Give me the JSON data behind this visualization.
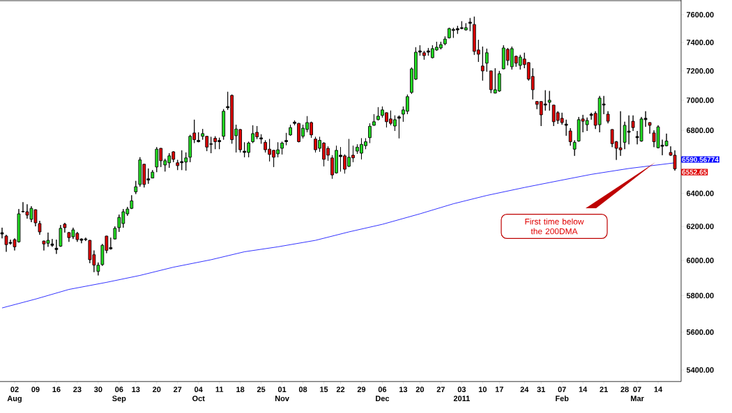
{
  "chart_data": {
    "type": "candlestick",
    "categories": [
      null,
      null,
      null,
      "02 Aug",
      null,
      null,
      null,
      null,
      "09",
      null,
      null,
      null,
      null,
      "16",
      null,
      null,
      null,
      null,
      "23",
      null,
      null,
      null,
      null,
      "30",
      null,
      null,
      null,
      null,
      "06 Sep",
      null,
      null,
      null,
      "13",
      null,
      null,
      null,
      null,
      "20",
      null,
      null,
      null,
      null,
      "27",
      null,
      null,
      null,
      null,
      "04 Oct",
      null,
      null,
      null,
      null,
      "11",
      null,
      null,
      null,
      null,
      "18",
      null,
      null,
      null,
      null,
      "25",
      null,
      null,
      null,
      null,
      "01 Nov",
      null,
      null,
      null,
      null,
      "08",
      null,
      null,
      null,
      null,
      "15",
      null,
      null,
      null,
      "22",
      null,
      null,
      null,
      null,
      "29",
      null,
      null,
      null,
      null,
      "06 Dec",
      null,
      null,
      null,
      null,
      "13",
      null,
      null,
      null,
      "20",
      null,
      null,
      null,
      null,
      "27",
      null,
      null,
      null,
      null,
      "03 2011",
      null,
      null,
      null,
      null,
      "10",
      null,
      null,
      null,
      "17",
      null,
      null,
      null,
      null,
      null,
      "24",
      null,
      null,
      null,
      "31",
      null,
      null,
      null,
      null,
      "07 Feb",
      null,
      null,
      null,
      null,
      "14",
      null,
      null,
      null,
      null,
      "21",
      null,
      null,
      null,
      null,
      "28",
      null,
      null,
      "07 Mar",
      null,
      null,
      null,
      null,
      "14",
      null,
      null,
      null,
      null
    ],
    "ohlc": [
      [
        6154,
        6192,
        6129,
        6162
      ],
      [
        6142,
        6150,
        6050,
        6092
      ],
      [
        6105,
        6121,
        6092,
        6100
      ],
      [
        6121,
        6129,
        6058,
        6079
      ],
      [
        6108,
        6304,
        6104,
        6275
      ],
      [
        6288,
        6346,
        6283,
        6290
      ],
      [
        6288,
        6333,
        6246,
        6267
      ],
      [
        6242,
        6321,
        6225,
        6308
      ],
      [
        6300,
        6302,
        6200,
        6221
      ],
      [
        6217,
        6233,
        6150,
        6167
      ],
      [
        6113,
        6115,
        6058,
        6096
      ],
      [
        6100,
        6163,
        6079,
        6117
      ],
      [
        6088,
        6125,
        6079,
        6096
      ],
      [
        6071,
        6121,
        6038,
        6063
      ],
      [
        6083,
        6208,
        6079,
        6188
      ],
      [
        6213,
        6221,
        6163,
        6192
      ],
      [
        6163,
        6167,
        6108,
        6133
      ],
      [
        6138,
        6192,
        6125,
        6179
      ],
      [
        6158,
        6167,
        6108,
        6121
      ],
      [
        6117,
        6129,
        6100,
        6125
      ],
      [
        6125,
        6133,
        6113,
        6121
      ],
      [
        6117,
        6119,
        5984,
        6004
      ],
      [
        6033,
        6058,
        5933,
        5973
      ],
      [
        5937,
        5988,
        5914,
        5973
      ],
      [
        5976,
        6096,
        5969,
        6088
      ],
      [
        6142,
        6144,
        6042,
        6058
      ],
      [
        6067,
        6133,
        6063,
        6075
      ],
      [
        6125,
        6200,
        6123,
        6188
      ],
      [
        6192,
        6271,
        6167,
        6254
      ],
      [
        6217,
        6304,
        6192,
        6288
      ],
      [
        6275,
        6317,
        6263,
        6304
      ],
      [
        6308,
        6388,
        6304,
        6354
      ],
      [
        6409,
        6477,
        6396,
        6441
      ],
      [
        6455,
        6626,
        6441,
        6609
      ],
      [
        6582,
        6584,
        6436,
        6455
      ],
      [
        6482,
        6555,
        6459,
        6490
      ],
      [
        6495,
        6545,
        6493,
        6532
      ],
      [
        6564,
        6691,
        6532,
        6678
      ],
      [
        6683,
        6685,
        6564,
        6604
      ],
      [
        6577,
        6617,
        6536,
        6604
      ],
      [
        6591,
        6652,
        6559,
        6635
      ],
      [
        6661,
        6665,
        6595,
        6613
      ],
      [
        6591,
        6609,
        6545,
        6573
      ],
      [
        6591,
        6670,
        6545,
        6599
      ],
      [
        6596,
        6657,
        6541,
        6622
      ],
      [
        6626,
        6770,
        6595,
        6761
      ],
      [
        6783,
        6870,
        6717,
        6739
      ],
      [
        6726,
        6787,
        6722,
        6735
      ],
      [
        6761,
        6809,
        6739,
        6778
      ],
      [
        6761,
        6763,
        6665,
        6691
      ],
      [
        6713,
        6757,
        6652,
        6709
      ],
      [
        6748,
        6761,
        6678,
        6726
      ],
      [
        6726,
        6752,
        6678,
        6734
      ],
      [
        6761,
        6940,
        6739,
        6926
      ],
      [
        6949,
        7057,
        6935,
        6957
      ],
      [
        7033,
        7038,
        6713,
        6739
      ],
      [
        6765,
        6837,
        6657,
        6809
      ],
      [
        6805,
        6809,
        6657,
        6674
      ],
      [
        6657,
        6722,
        6626,
        6665
      ],
      [
        6657,
        6726,
        6626,
        6717
      ],
      [
        6726,
        6833,
        6717,
        6778
      ],
      [
        6787,
        6828,
        6743,
        6757
      ],
      [
        6743,
        6774,
        6713,
        6751
      ],
      [
        6722,
        6735,
        6657,
        6674
      ],
      [
        6678,
        6743,
        6600,
        6644
      ],
      [
        6670,
        6672,
        6564,
        6626
      ],
      [
        6648,
        6722,
        6626,
        6674
      ],
      [
        6683,
        6726,
        6644,
        6717
      ],
      [
        6726,
        6783,
        6704,
        6734
      ],
      [
        6770,
        6837,
        6765,
        6818
      ],
      [
        6846,
        6865,
        6833,
        6854
      ],
      [
        6846,
        6848,
        6722,
        6726
      ],
      [
        6761,
        6837,
        6748,
        6814
      ],
      [
        6805,
        6893,
        6787,
        6851
      ],
      [
        6851,
        6856,
        6752,
        6770
      ],
      [
        6743,
        6757,
        6657,
        6674
      ],
      [
        6683,
        6757,
        6661,
        6735
      ],
      [
        6717,
        6722,
        6569,
        6613
      ],
      [
        6683,
        6696,
        6604,
        6639
      ],
      [
        6622,
        6639,
        6491,
        6514
      ],
      [
        6527,
        6700,
        6523,
        6670
      ],
      [
        6639,
        6691,
        6536,
        6630
      ],
      [
        6635,
        6644,
        6523,
        6550
      ],
      [
        6568,
        6743,
        6564,
        6626
      ],
      [
        6639,
        6700,
        6595,
        6622
      ],
      [
        6665,
        6709,
        6648,
        6691
      ],
      [
        6652,
        6748,
        6613,
        6709
      ],
      [
        6700,
        6748,
        6678,
        6726
      ],
      [
        6752,
        6846,
        6717,
        6827
      ],
      [
        6833,
        6907,
        6831,
        6856
      ],
      [
        6870,
        6953,
        6865,
        6893
      ],
      [
        6898,
        6958,
        6884,
        6935
      ],
      [
        6916,
        6918,
        6819,
        6856
      ],
      [
        6875,
        6930,
        6833,
        6846
      ],
      [
        6828,
        6898,
        6796,
        6870
      ],
      [
        6879,
        6898,
        6748,
        6889
      ],
      [
        6907,
        6958,
        6856,
        6935
      ],
      [
        6926,
        7038,
        6907,
        7024
      ],
      [
        7052,
        7224,
        7043,
        7214
      ],
      [
        7143,
        7366,
        7138,
        7331
      ],
      [
        7341,
        7380,
        7307,
        7331
      ],
      [
        7327,
        7341,
        7278,
        7307
      ],
      [
        7331,
        7361,
        7307,
        7341
      ],
      [
        7292,
        7380,
        7288,
        7356
      ],
      [
        7346,
        7405,
        7341,
        7366
      ],
      [
        7361,
        7405,
        7351,
        7385
      ],
      [
        7390,
        7443,
        7380,
        7424
      ],
      [
        7433,
        7505,
        7429,
        7500
      ],
      [
        7486,
        7505,
        7433,
        7494
      ],
      [
        7500,
        7519,
        7462,
        7490
      ],
      [
        7500,
        7552,
        7495,
        7505
      ],
      [
        7490,
        7538,
        7486,
        7505
      ],
      [
        7538,
        7576,
        7481,
        7546
      ],
      [
        7529,
        7586,
        7312,
        7336
      ],
      [
        7346,
        7419,
        7263,
        7317
      ],
      [
        7234,
        7371,
        7133,
        7200
      ],
      [
        7254,
        7356,
        7195,
        7327
      ],
      [
        7200,
        7202,
        7048,
        7071
      ],
      [
        7048,
        7219,
        7046,
        7071
      ],
      [
        7062,
        7200,
        7057,
        7181
      ],
      [
        7214,
        7380,
        7212,
        7361
      ],
      [
        7351,
        7361,
        7239,
        7273
      ],
      [
        7229,
        7371,
        7210,
        7356
      ],
      [
        7302,
        7307,
        7229,
        7254
      ],
      [
        7239,
        7312,
        7210,
        7297
      ],
      [
        7283,
        7327,
        7219,
        7244
      ],
      [
        7258,
        7260,
        7133,
        7143
      ],
      [
        7162,
        7219,
        7005,
        7071
      ],
      [
        6991,
        6995,
        6940,
        6972
      ],
      [
        6991,
        6993,
        6828,
        6902
      ],
      [
        6967,
        7067,
        6930,
        6975
      ],
      [
        6986,
        7062,
        6930,
        7000
      ],
      [
        6967,
        6969,
        6828,
        6856
      ],
      [
        6916,
        6926,
        6842,
        6865
      ],
      [
        6879,
        6916,
        6837,
        6851
      ],
      [
        6833,
        6870,
        6765,
        6841
      ],
      [
        6796,
        6814,
        6700,
        6726
      ],
      [
        6678,
        6735,
        6635,
        6722
      ],
      [
        6730,
        6888,
        6726,
        6870
      ],
      [
        6875,
        6902,
        6787,
        6860
      ],
      [
        6837,
        6884,
        6796,
        6865
      ],
      [
        6898,
        6916,
        6870,
        6906
      ],
      [
        6912,
        6926,
        6809,
        6833
      ],
      [
        6837,
        7029,
        6787,
        7014
      ],
      [
        6967,
        7029,
        6907,
        6975
      ],
      [
        6907,
        6926,
        6846,
        6860
      ],
      [
        6805,
        6807,
        6691,
        6713
      ],
      [
        6726,
        6730,
        6609,
        6683
      ],
      [
        6687,
        6926,
        6635,
        6674
      ],
      [
        6722,
        6856,
        6678,
        6833
      ],
      [
        6787,
        6898,
        6709,
        6795
      ],
      [
        6860,
        6898,
        6796,
        6818
      ],
      [
        6752,
        6796,
        6709,
        6760
      ],
      [
        6730,
        6888,
        6726,
        6875
      ],
      [
        6879,
        6926,
        6823,
        6870
      ],
      [
        6851,
        6853,
        6778,
        6833
      ],
      [
        6783,
        6800,
        6691,
        6726
      ],
      [
        6687,
        6833,
        6683,
        6823
      ],
      [
        6696,
        6739,
        6639,
        6704
      ],
      [
        6700,
        6778,
        6696,
        6730
      ],
      [
        6657,
        6696,
        6635,
        6639
      ],
      [
        6639,
        6670,
        6541,
        6552.65
      ]
    ],
    "series": [
      {
        "type": "line",
        "color": "#0000ff",
        "values": [
          5732,
          null,
          null,
          null,
          null,
          null,
          null,
          null,
          5781,
          null,
          null,
          null,
          null,
          null,
          null,
          null,
          5835,
          null,
          null,
          null,
          null,
          null,
          null,
          null,
          null,
          5875,
          null,
          null,
          null,
          null,
          null,
          null,
          null,
          5914,
          null,
          null,
          null,
          null,
          null,
          null,
          null,
          5961,
          null,
          null,
          null,
          null,
          null,
          null,
          null,
          null,
          6004,
          null,
          null,
          null,
          null,
          null,
          null,
          null,
          6050,
          null,
          null,
          null,
          null,
          null,
          null,
          null,
          6079,
          null,
          null,
          null,
          null,
          null,
          null,
          null,
          null,
          6117,
          null,
          null,
          null,
          null,
          null,
          null,
          null,
          6167,
          null,
          null,
          null,
          null,
          null,
          null,
          null,
          6212,
          null,
          null,
          null,
          null,
          null,
          null,
          null,
          null,
          6275,
          null,
          null,
          null,
          null,
          null,
          null,
          null,
          6336,
          null,
          null,
          null,
          null,
          null,
          null,
          null,
          6387,
          null,
          null,
          null,
          null,
          null,
          null,
          null,
          null,
          6436,
          null,
          null,
          null,
          null,
          null,
          null,
          null,
          6477,
          null,
          null,
          null,
          null,
          null,
          null,
          null,
          6518,
          null,
          null,
          null,
          null,
          null,
          null,
          null,
          null,
          6555,
          null,
          null,
          null,
          null,
          null,
          null,
          null,
          null,
          null,
          null,
          6590.57
        ]
      }
    ],
    "ylim": [
      5340,
      7710
    ],
    "yticks": [
      {
        "value": 5400,
        "label": "5400.00"
      },
      {
        "value": 5600,
        "label": "5600.00"
      },
      {
        "value": 5800,
        "label": "5800.00"
      },
      {
        "value": 6000,
        "label": "6000.00"
      },
      {
        "value": 6200,
        "label": "6200.00"
      },
      {
        "value": 6400,
        "label": "6400.00"
      },
      {
        "value": 6600,
        "label": null
      },
      {
        "value": 6800,
        "label": "6800.00"
      },
      {
        "value": 7000,
        "label": "7000.00"
      },
      {
        "value": 7200,
        "label": "7200.00"
      },
      {
        "value": 7400,
        "label": "7400.00"
      },
      {
        "value": 7600,
        "label": "7600.00"
      }
    ],
    "log": true,
    "annotations": [
      "First time below the 200DMA",
      "6590.56774",
      "6552.65"
    ]
  }
}
